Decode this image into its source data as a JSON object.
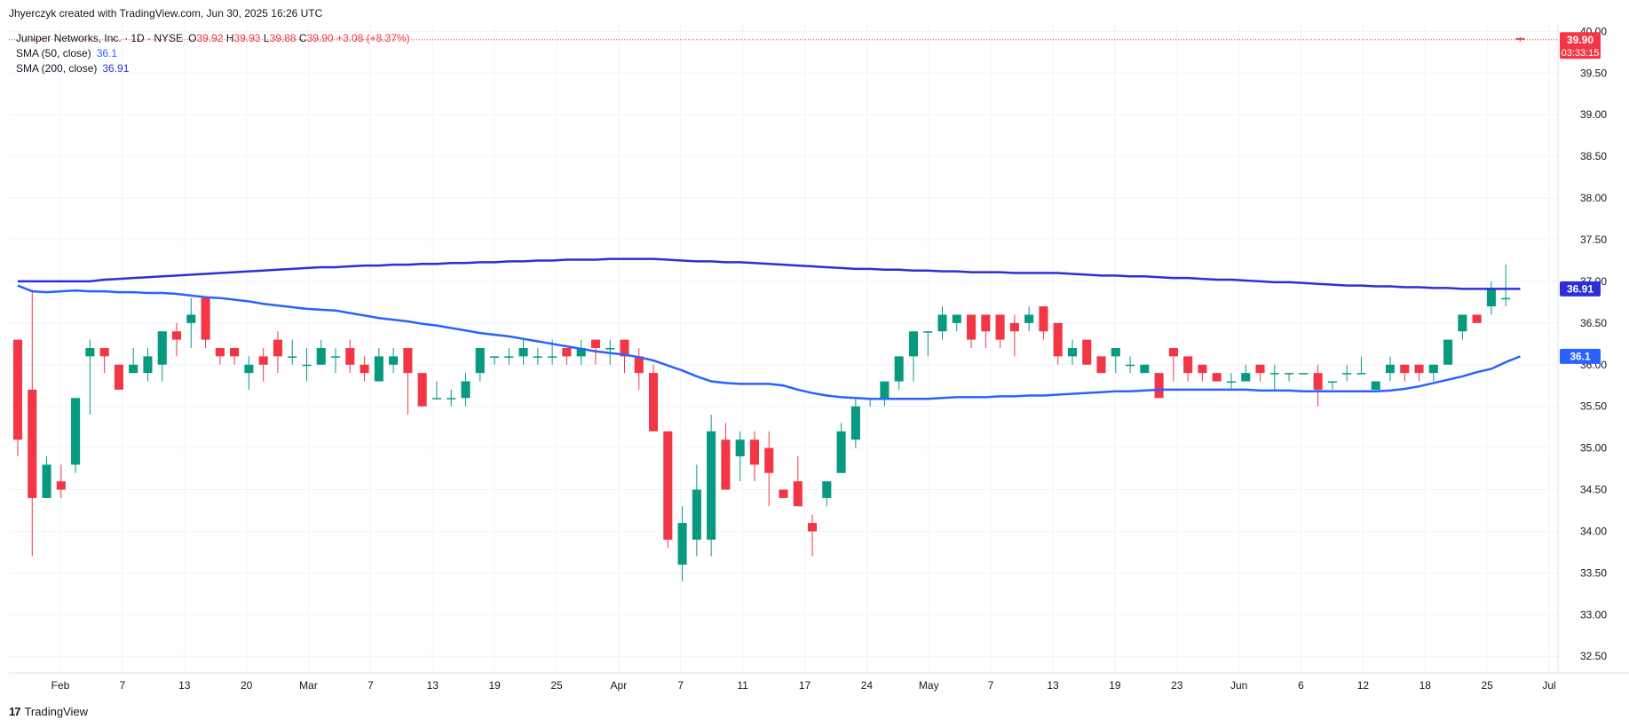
{
  "header": {
    "text": "Jhyerczyk created with TradingView.com, Jun 30, 2025 16:26 UTC"
  },
  "legend": {
    "symbol": "Juniper Networks, Inc. · 1D · NYSE",
    "open_label": "O",
    "open": "39.92",
    "high_label": "H",
    "high": "39.93",
    "low_label": "L",
    "low": "39.88",
    "close_label": "C",
    "close": "39.90",
    "change": "+3.08 (+8.37%)",
    "sma50_label": "SMA (50, close)",
    "sma50_value": "36.1",
    "sma200_label": "SMA (200, close)",
    "sma200_value": "36.91"
  },
  "footer": {
    "logo_text": "TradingView"
  },
  "colors": {
    "up": "#089981",
    "down": "#f23645",
    "sma50": "#2962ff",
    "sma200": "#2d2fd6",
    "grid": "#f0f3fa",
    "axis_text": "#131722"
  },
  "chart_data": {
    "type": "candlestick",
    "y_ticks": [
      "40.00",
      "39.50",
      "39.00",
      "38.50",
      "38.00",
      "37.50",
      "37.00",
      "36.50",
      "36.00",
      "35.50",
      "35.00",
      "34.50",
      "34.00",
      "33.50",
      "33.00",
      "32.50"
    ],
    "ylim": [
      32.3,
      40.1
    ],
    "x_ticks": [
      "Feb",
      "7",
      "13",
      "20",
      "Mar",
      "7",
      "13",
      "19",
      "25",
      "Apr",
      "7",
      "11",
      "17",
      "24",
      "May",
      "7",
      "13",
      "19",
      "23",
      "Jun",
      "6",
      "12",
      "18",
      "25",
      "Jul"
    ],
    "price_labels": [
      {
        "value": "39.90",
        "sub": "03:33:15",
        "color": "#f23645",
        "price": 39.9
      },
      {
        "value": "36.91",
        "sub": "",
        "color": "#2d2fd6",
        "price": 36.91
      },
      {
        "value": "36.1",
        "sub": "",
        "color": "#2962ff",
        "price": 36.1
      }
    ],
    "candles": [
      [
        36.3,
        35.1,
        36.3,
        34.9
      ],
      [
        35.7,
        34.4,
        36.9,
        33.7
      ],
      [
        34.4,
        34.8,
        34.9,
        34.4
      ],
      [
        34.6,
        34.5,
        34.8,
        34.4
      ],
      [
        34.8,
        35.6,
        35.6,
        34.7
      ],
      [
        36.1,
        36.2,
        36.3,
        35.4
      ],
      [
        36.2,
        36.1,
        36.2,
        35.9
      ],
      [
        36.0,
        35.7,
        36.0,
        35.7
      ],
      [
        35.9,
        36.0,
        36.2,
        35.9
      ],
      [
        35.9,
        36.1,
        36.2,
        35.8
      ],
      [
        36.0,
        36.4,
        36.4,
        35.8
      ],
      [
        36.4,
        36.3,
        36.5,
        36.1
      ],
      [
        36.5,
        36.6,
        36.8,
        36.2
      ],
      [
        36.8,
        36.3,
        36.8,
        36.2
      ],
      [
        36.2,
        36.1,
        36.2,
        36.0
      ],
      [
        36.2,
        36.1,
        36.2,
        36.0
      ],
      [
        35.9,
        36.0,
        36.1,
        35.7
      ],
      [
        36.1,
        36.0,
        36.2,
        35.8
      ],
      [
        36.3,
        36.1,
        36.4,
        35.9
      ],
      [
        36.1,
        36.1,
        36.3,
        36.0
      ],
      [
        36.0,
        36.0,
        36.2,
        35.8
      ],
      [
        36.0,
        36.2,
        36.3,
        36.0
      ],
      [
        36.1,
        36.1,
        36.2,
        35.9
      ],
      [
        36.2,
        36.0,
        36.3,
        35.9
      ],
      [
        36.0,
        35.9,
        36.1,
        35.8
      ],
      [
        35.8,
        36.1,
        36.2,
        35.8
      ],
      [
        36.0,
        36.1,
        36.2,
        35.9
      ],
      [
        36.2,
        35.9,
        36.2,
        35.4
      ],
      [
        35.9,
        35.5,
        35.9,
        35.5
      ],
      [
        35.6,
        35.6,
        35.8,
        35.6
      ],
      [
        35.6,
        35.6,
        35.7,
        35.5
      ],
      [
        35.6,
        35.8,
        35.9,
        35.5
      ],
      [
        35.9,
        36.2,
        36.2,
        35.8
      ],
      [
        36.1,
        36.1,
        36.1,
        36.0
      ],
      [
        36.1,
        36.1,
        36.2,
        36.0
      ],
      [
        36.1,
        36.2,
        36.3,
        36.0
      ],
      [
        36.1,
        36.1,
        36.2,
        36.0
      ],
      [
        36.1,
        36.1,
        36.3,
        36.0
      ],
      [
        36.2,
        36.1,
        36.2,
        36.0
      ],
      [
        36.1,
        36.2,
        36.3,
        36.0
      ],
      [
        36.3,
        36.2,
        36.3,
        36.0
      ],
      [
        36.2,
        36.2,
        36.3,
        36.0
      ],
      [
        36.3,
        36.1,
        36.3,
        35.9
      ],
      [
        36.1,
        35.9,
        36.2,
        35.7
      ],
      [
        35.9,
        35.2,
        36.0,
        35.2
      ],
      [
        35.2,
        33.9,
        35.2,
        33.8
      ],
      [
        33.6,
        34.1,
        34.3,
        33.4
      ],
      [
        33.9,
        34.5,
        34.8,
        33.7
      ],
      [
        33.9,
        35.2,
        35.4,
        33.7
      ],
      [
        35.1,
        34.5,
        35.3,
        34.5
      ],
      [
        34.9,
        35.1,
        35.2,
        34.6
      ],
      [
        35.1,
        34.8,
        35.2,
        34.6
      ],
      [
        35.0,
        34.7,
        35.2,
        34.3
      ],
      [
        34.5,
        34.4,
        34.5,
        34.4
      ],
      [
        34.6,
        34.3,
        34.9,
        34.3
      ],
      [
        34.1,
        34.0,
        34.2,
        33.7
      ],
      [
        34.4,
        34.6,
        34.6,
        34.3
      ],
      [
        34.7,
        35.2,
        35.3,
        34.7
      ],
      [
        35.1,
        35.5,
        35.6,
        35.0
      ],
      [
        35.6,
        35.6,
        35.6,
        35.5
      ],
      [
        35.6,
        35.8,
        35.8,
        35.5
      ],
      [
        35.8,
        36.1,
        36.1,
        35.7
      ],
      [
        36.1,
        36.4,
        36.4,
        35.8
      ],
      [
        36.4,
        36.4,
        36.4,
        36.1
      ],
      [
        36.4,
        36.6,
        36.7,
        36.3
      ],
      [
        36.5,
        36.6,
        36.6,
        36.4
      ],
      [
        36.6,
        36.3,
        36.6,
        36.2
      ],
      [
        36.6,
        36.4,
        36.6,
        36.2
      ],
      [
        36.6,
        36.3,
        36.6,
        36.2
      ],
      [
        36.5,
        36.4,
        36.6,
        36.1
      ],
      [
        36.5,
        36.6,
        36.7,
        36.4
      ],
      [
        36.7,
        36.4,
        36.7,
        36.3
      ],
      [
        36.5,
        36.1,
        36.5,
        36.0
      ],
      [
        36.1,
        36.2,
        36.3,
        36.0
      ],
      [
        36.3,
        36.0,
        36.3,
        36.0
      ],
      [
        36.1,
        35.9,
        36.1,
        35.9
      ],
      [
        36.1,
        36.2,
        36.2,
        35.9
      ],
      [
        36.0,
        36.0,
        36.1,
        35.9
      ],
      [
        35.9,
        36.0,
        36.0,
        35.9
      ],
      [
        35.9,
        35.6,
        35.9,
        35.6
      ],
      [
        36.2,
        36.1,
        36.2,
        35.8
      ],
      [
        36.1,
        35.9,
        36.1,
        35.8
      ],
      [
        36.0,
        35.9,
        36.0,
        35.8
      ],
      [
        35.9,
        35.8,
        35.9,
        35.8
      ],
      [
        35.8,
        35.8,
        35.9,
        35.7
      ],
      [
        35.8,
        35.9,
        36.0,
        35.8
      ],
      [
        36.0,
        35.9,
        36.0,
        35.8
      ],
      [
        35.9,
        35.9,
        36.0,
        35.7
      ],
      [
        35.9,
        35.9,
        35.9,
        35.8
      ],
      [
        35.9,
        35.9,
        35.9,
        35.9
      ],
      [
        35.9,
        35.7,
        36.0,
        35.5
      ],
      [
        35.8,
        35.8,
        35.8,
        35.7
      ],
      [
        35.9,
        35.9,
        36.0,
        35.8
      ],
      [
        35.9,
        35.9,
        36.1,
        35.9
      ],
      [
        35.7,
        35.8,
        35.8,
        35.7
      ],
      [
        35.9,
        36.0,
        36.1,
        35.8
      ],
      [
        36.0,
        35.9,
        36.0,
        35.8
      ],
      [
        36.0,
        35.9,
        36.0,
        35.8
      ],
      [
        35.9,
        36.0,
        36.0,
        35.8
      ],
      [
        36.0,
        36.3,
        36.3,
        36.0
      ],
      [
        36.4,
        36.6,
        36.6,
        36.3
      ],
      [
        36.6,
        36.5,
        36.6,
        36.5
      ],
      [
        36.7,
        36.9,
        37.0,
        36.6
      ],
      [
        36.8,
        36.8,
        37.2,
        36.7
      ],
      [
        39.92,
        39.9,
        39.93,
        39.88
      ]
    ],
    "sma50": [
      36.95,
      36.88,
      36.87,
      36.88,
      36.89,
      36.88,
      36.88,
      36.87,
      36.87,
      36.86,
      36.86,
      36.85,
      36.83,
      36.81,
      36.8,
      36.78,
      36.76,
      36.73,
      36.71,
      36.69,
      36.67,
      36.66,
      36.65,
      36.62,
      36.59,
      36.56,
      36.54,
      36.52,
      36.49,
      36.47,
      36.44,
      36.41,
      36.38,
      36.36,
      36.34,
      36.31,
      36.28,
      36.25,
      36.22,
      36.19,
      36.16,
      36.14,
      36.12,
      36.09,
      36.05,
      35.99,
      35.93,
      35.86,
      35.8,
      35.78,
      35.77,
      35.77,
      35.77,
      35.75,
      35.7,
      35.66,
      35.63,
      35.61,
      35.6,
      35.59,
      35.59,
      35.59,
      35.59,
      35.59,
      35.6,
      35.61,
      35.61,
      35.61,
      35.62,
      35.62,
      35.63,
      35.63,
      35.64,
      35.65,
      35.66,
      35.67,
      35.68,
      35.68,
      35.69,
      35.7,
      35.7,
      35.7,
      35.7,
      35.7,
      35.7,
      35.7,
      35.69,
      35.69,
      35.69,
      35.68,
      35.68,
      35.68,
      35.68,
      35.68,
      35.68,
      35.69,
      35.71,
      35.74,
      35.78,
      35.82,
      35.86,
      35.91,
      35.95,
      36.03,
      36.1
    ],
    "sma200": [
      37.0,
      37.0,
      37.0,
      37.0,
      37.0,
      37.0,
      37.02,
      37.03,
      37.04,
      37.05,
      37.06,
      37.07,
      37.08,
      37.09,
      37.1,
      37.11,
      37.12,
      37.13,
      37.14,
      37.15,
      37.16,
      37.17,
      37.17,
      37.18,
      37.19,
      37.19,
      37.2,
      37.2,
      37.21,
      37.21,
      37.22,
      37.22,
      37.23,
      37.23,
      37.24,
      37.24,
      37.25,
      37.25,
      37.26,
      37.26,
      37.26,
      37.27,
      37.27,
      37.27,
      37.27,
      37.26,
      37.25,
      37.24,
      37.24,
      37.23,
      37.23,
      37.22,
      37.21,
      37.2,
      37.19,
      37.18,
      37.17,
      37.16,
      37.15,
      37.15,
      37.14,
      37.14,
      37.13,
      37.13,
      37.12,
      37.12,
      37.11,
      37.11,
      37.11,
      37.1,
      37.1,
      37.1,
      37.1,
      37.09,
      37.08,
      37.07,
      37.07,
      37.06,
      37.06,
      37.05,
      37.04,
      37.04,
      37.03,
      37.02,
      37.02,
      37.01,
      37.0,
      36.99,
      36.99,
      36.98,
      36.97,
      36.96,
      36.95,
      36.95,
      36.94,
      36.94,
      36.93,
      36.93,
      36.92,
      36.92,
      36.91,
      36.91,
      36.91,
      36.91,
      36.91
    ]
  }
}
